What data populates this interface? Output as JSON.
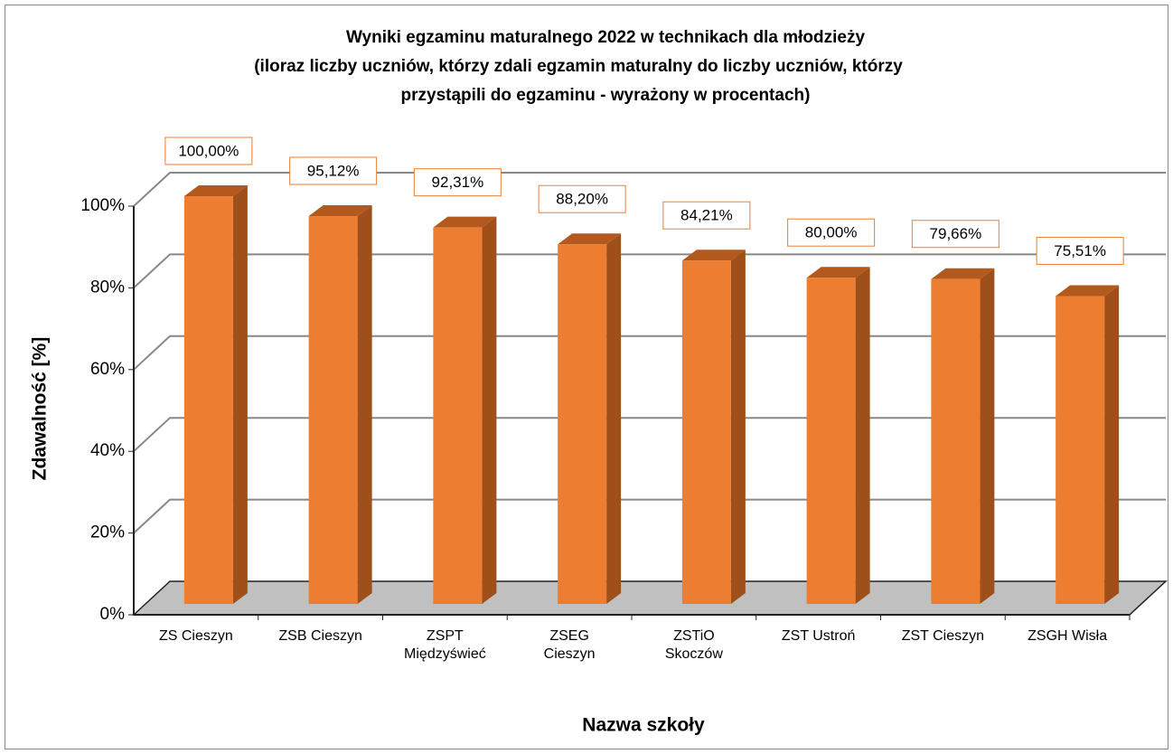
{
  "chart_data": {
    "type": "bar",
    "title": [
      "Wyniki egzaminu maturalnego 2022 w technikach dla młodzieży",
      "(iloraz liczby uczniów, którzy zdali egzamin maturalny do liczby uczniów, którzy",
      "przystąpili do egzaminu - wyrażony w procentach)"
    ],
    "x_label": "Nazwa szkoły",
    "y_label": "Zdawalność [%]",
    "categories": [
      "ZS Cieszyn",
      "ZSB Cieszyn",
      "ZSPT Międzyświeć",
      "ZSEG Cieszyn",
      "ZSTiO Skoczów",
      "ZST Ustroń",
      "ZST Cieszyn",
      "ZSGH Wisła"
    ],
    "values": [
      100,
      95.12,
      92.31,
      88.2,
      84.21,
      80,
      79.66,
      75.51
    ],
    "value_labels": [
      "100,00%",
      "95,12%",
      "92,31%",
      "88,20%",
      "84,21%",
      "80,00%",
      "79,66%",
      "75,51%"
    ],
    "color": "#ed7d31",
    "ylim": [
      0,
      100
    ],
    "yticks": [
      {
        "value": 0,
        "label": "0%"
      },
      {
        "value": 20,
        "label": "20%"
      },
      {
        "value": 40,
        "label": "40%"
      },
      {
        "value": 60,
        "label": "60%"
      },
      {
        "value": 80,
        "label": "80%"
      },
      {
        "value": 100,
        "label": "100%"
      }
    ],
    "grid": true
  }
}
